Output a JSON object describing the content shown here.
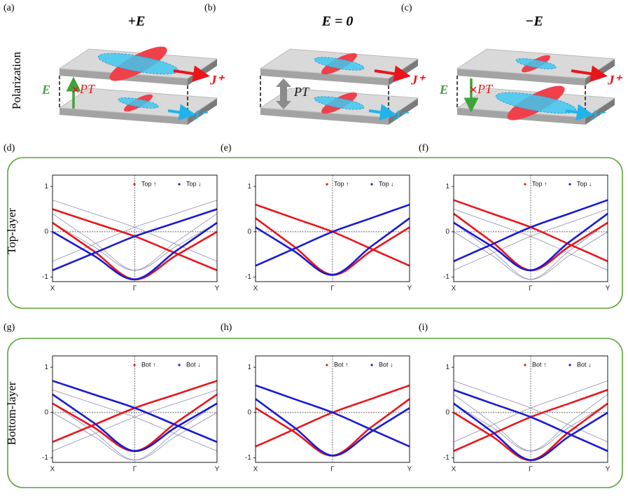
{
  "header": {
    "row_label": "Polarization",
    "panels": [
      {
        "label": "(a)",
        "title": "+E",
        "field_label": "E",
        "pt_label": "PT",
        "j_plus": "J⁺",
        "j_minus": "J⁻"
      },
      {
        "label": "(b)",
        "title": "E = 0",
        "pt_label": "PT",
        "j_plus": "J⁺",
        "j_minus": "J⁻"
      },
      {
        "label": "(c)",
        "title": "−E",
        "field_label": "E",
        "pt_label": "PT",
        "j_plus": "J⁺",
        "j_minus": "J⁻"
      }
    ]
  },
  "rows": [
    "Top-layer",
    "Bottom-layer"
  ],
  "chart_data": [
    {
      "type": "line",
      "label": "(d)",
      "categories": [
        "X",
        "Γ",
        "Y"
      ],
      "ylim": [
        -1.1,
        1.25
      ],
      "yticks": [
        -1,
        0,
        1
      ],
      "grid": true,
      "series": [
        {
          "name": "Top ↑",
          "color": "#e8161b",
          "curves": [
            [
              0.5,
              0.2,
              -0.1,
              -0.475,
              -0.85
            ],
            [
              0.2,
              -0.425,
              -1.05,
              -0.525,
              0.0
            ]
          ]
        },
        {
          "name": "Top ↓",
          "color": "#1a1ad4",
          "curves": [
            [
              -0.85,
              -0.475,
              -0.1,
              0.2,
              0.5
            ],
            [
              0.0,
              -0.525,
              -1.05,
              -0.425,
              0.2
            ]
          ]
        }
      ],
      "background_bands": {
        "color": "#8c8cae",
        "curves": [
          [
            -0.65,
            -0.275,
            0.1,
            0.4,
            0.7
          ],
          [
            0.2,
            -0.325,
            -0.85,
            -0.225,
            0.4
          ],
          [
            0.7,
            0.4,
            0.1,
            -0.275,
            -0.65
          ],
          [
            0.4,
            -0.225,
            -0.85,
            -0.325,
            0.2
          ]
        ]
      }
    },
    {
      "type": "line",
      "label": "(e)",
      "categories": [
        "X",
        "Γ",
        "Y"
      ],
      "ylim": [
        -1.1,
        1.25
      ],
      "yticks": [
        -1,
        0,
        1
      ],
      "grid": true,
      "series": [
        {
          "name": "Top ↑",
          "color": "#e8161b",
          "curves": [
            [
              0.6,
              0.3,
              0.0,
              -0.375,
              -0.75
            ],
            [
              0.3,
              -0.325,
              -0.95,
              -0.425,
              0.1
            ]
          ]
        },
        {
          "name": "Top ↓",
          "color": "#1a1ad4",
          "curves": [
            [
              -0.75,
              -0.375,
              0.0,
              0.3,
              0.6
            ],
            [
              0.1,
              -0.425,
              -0.95,
              -0.325,
              0.3
            ]
          ]
        }
      ],
      "background_bands": {
        "color": "#8c8cae",
        "curves": []
      }
    },
    {
      "type": "line",
      "label": "(f)",
      "categories": [
        "X",
        "Γ",
        "Y"
      ],
      "ylim": [
        -1.1,
        1.25
      ],
      "yticks": [
        -1,
        0,
        1
      ],
      "grid": true,
      "series": [
        {
          "name": "Top ↑",
          "color": "#e8161b",
          "curves": [
            [
              0.7,
              0.4,
              0.1,
              -0.275,
              -0.65
            ],
            [
              0.4,
              -0.225,
              -0.85,
              -0.325,
              0.2
            ]
          ]
        },
        {
          "name": "Top ↓",
          "color": "#1a1ad4",
          "curves": [
            [
              -0.65,
              -0.275,
              0.1,
              0.4,
              0.7
            ],
            [
              0.2,
              -0.325,
              -0.85,
              -0.225,
              0.4
            ]
          ]
        }
      ],
      "background_bands": {
        "color": "#8c8cae",
        "curves": [
          [
            -0.85,
            -0.475,
            -0.1,
            0.2,
            0.5
          ],
          [
            0.0,
            -0.525,
            -1.05,
            -0.425,
            0.2
          ],
          [
            0.5,
            0.2,
            -0.1,
            -0.475,
            -0.85
          ],
          [
            0.2,
            -0.425,
            -1.05,
            -0.525,
            0.0
          ]
        ]
      }
    },
    {
      "type": "line",
      "label": "(g)",
      "categories": [
        "X",
        "Γ",
        "Y"
      ],
      "ylim": [
        -1.1,
        1.25
      ],
      "yticks": [
        -1,
        0,
        1
      ],
      "grid": true,
      "series": [
        {
          "name": "Bot ↑",
          "color": "#e8161b",
          "curves": [
            [
              -0.65,
              -0.275,
              0.1,
              0.4,
              0.7
            ],
            [
              0.2,
              -0.325,
              -0.85,
              -0.225,
              0.4
            ]
          ]
        },
        {
          "name": "Bot ↓",
          "color": "#1a1ad4",
          "curves": [
            [
              0.7,
              0.4,
              0.1,
              -0.275,
              -0.65
            ],
            [
              0.4,
              -0.225,
              -0.85,
              -0.325,
              0.2
            ]
          ]
        }
      ],
      "background_bands": {
        "color": "#8c8cae",
        "curves": [
          [
            0.5,
            0.2,
            -0.1,
            -0.475,
            -0.85
          ],
          [
            0.2,
            -0.425,
            -1.05,
            -0.525,
            0.0
          ],
          [
            -0.85,
            -0.475,
            -0.1,
            0.2,
            0.5
          ],
          [
            0.0,
            -0.525,
            -1.05,
            -0.425,
            0.2
          ]
        ]
      }
    },
    {
      "type": "line",
      "label": "(h)",
      "categories": [
        "X",
        "Γ",
        "Y"
      ],
      "ylim": [
        -1.1,
        1.25
      ],
      "yticks": [
        -1,
        0,
        1
      ],
      "grid": true,
      "series": [
        {
          "name": "Bot ↑",
          "color": "#e8161b",
          "curves": [
            [
              -0.75,
              -0.375,
              0.0,
              0.3,
              0.6
            ],
            [
              0.1,
              -0.425,
              -0.95,
              -0.325,
              0.3
            ]
          ]
        },
        {
          "name": "Bot ↓",
          "color": "#1a1ad4",
          "curves": [
            [
              0.6,
              0.3,
              0.0,
              -0.375,
              -0.75
            ],
            [
              0.3,
              -0.325,
              -0.95,
              -0.425,
              0.1
            ]
          ]
        }
      ],
      "background_bands": {
        "color": "#8c8cae",
        "curves": []
      }
    },
    {
      "type": "line",
      "label": "(i)",
      "categories": [
        "X",
        "Γ",
        "Y"
      ],
      "ylim": [
        -1.1,
        1.25
      ],
      "yticks": [
        -1,
        0,
        1
      ],
      "grid": true,
      "series": [
        {
          "name": "Bot ↑",
          "color": "#e8161b",
          "curves": [
            [
              -0.85,
              -0.475,
              -0.1,
              0.2,
              0.5
            ],
            [
              0.0,
              -0.525,
              -1.05,
              -0.425,
              0.2
            ]
          ]
        },
        {
          "name": "Bot ↓",
          "color": "#1a1ad4",
          "curves": [
            [
              0.5,
              0.2,
              -0.1,
              -0.475,
              -0.85
            ],
            [
              0.2,
              -0.425,
              -1.05,
              -0.525,
              0.0
            ]
          ]
        }
      ],
      "background_bands": {
        "color": "#8c8cae",
        "curves": [
          [
            0.7,
            0.4,
            0.1,
            -0.275,
            -0.65
          ],
          [
            0.4,
            -0.225,
            -0.85,
            -0.325,
            0.2
          ],
          [
            -0.65,
            -0.275,
            0.1,
            0.4,
            0.7
          ],
          [
            0.2,
            -0.325,
            -0.85,
            -0.225,
            0.4
          ]
        ]
      }
    }
  ]
}
